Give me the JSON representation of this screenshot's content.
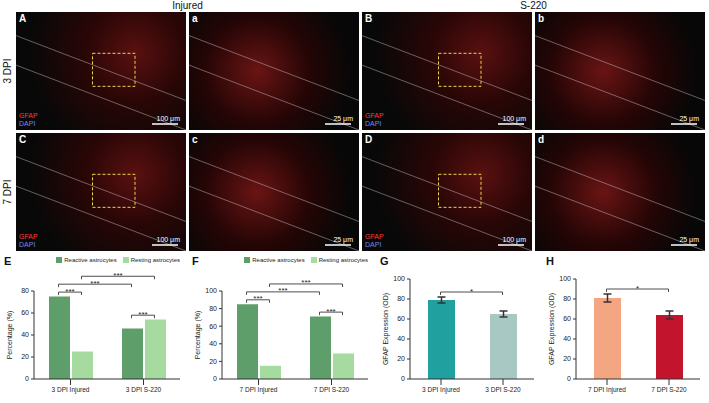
{
  "figure": {
    "columns": [
      "Injured",
      "S-220"
    ],
    "rows": [
      {
        "label": "3 DPI",
        "panels": [
          {
            "letter": "A",
            "stains": [
              "GFAP",
              "DAPI"
            ],
            "scale_bar": "100 μm"
          },
          {
            "letter": "a",
            "scale_bar": "25 μm"
          },
          {
            "letter": "B",
            "stains": [
              "GFAP",
              "DAPI"
            ],
            "scale_bar": "100 μm"
          },
          {
            "letter": "b",
            "scale_bar": "25 μm"
          }
        ]
      },
      {
        "label": "7 DPI",
        "panels": [
          {
            "letter": "C",
            "stains": [
              "GFAP",
              "DAPI"
            ],
            "scale_bar": "100 μm"
          },
          {
            "letter": "c",
            "scale_bar": "25 μm"
          },
          {
            "letter": "D",
            "stains": [
              "GFAP",
              "DAPI"
            ],
            "scale_bar": "100 μm"
          },
          {
            "letter": "d",
            "scale_bar": "25 μm"
          }
        ]
      }
    ]
  },
  "chart_data": [
    {
      "type": "bar",
      "label": "E",
      "categories": [
        "3 DPI Injured",
        "3 DPI S-220"
      ],
      "series": [
        {
          "name": "Reactive astrocytes",
          "color": "#5e9e6a",
          "values": [
            75,
            46
          ]
        },
        {
          "name": "Resting astrocytes",
          "color": "#a6dba0",
          "values": [
            25,
            54
          ]
        }
      ],
      "ylabel": "Percentage (%)",
      "ylim": [
        0,
        80
      ],
      "yticks": [
        0,
        20,
        40,
        60,
        80
      ],
      "grid": false,
      "legend": "top",
      "annotations": [
        {
          "text": "***",
          "from": [
            0,
            0
          ],
          "to": [
            0,
            1
          ]
        },
        {
          "text": "***",
          "from": [
            1,
            0
          ],
          "to": [
            1,
            1
          ]
        },
        {
          "text": "***",
          "from": [
            0,
            0
          ],
          "to": [
            1,
            0
          ]
        },
        {
          "text": "***",
          "from": [
            0,
            1
          ],
          "to": [
            1,
            1
          ]
        }
      ]
    },
    {
      "type": "bar",
      "label": "F",
      "categories": [
        "7 DPI Injured",
        "7 DPI S-220"
      ],
      "series": [
        {
          "name": "Reactive astrocytes",
          "color": "#5e9e6a",
          "values": [
            85,
            71
          ]
        },
        {
          "name": "Resting astrocytes",
          "color": "#a6dba0",
          "values": [
            15,
            29
          ]
        }
      ],
      "ylabel": "Percentage (%)",
      "ylim": [
        0,
        100
      ],
      "yticks": [
        0,
        20,
        40,
        60,
        80,
        100
      ],
      "grid": false,
      "legend": "top",
      "annotations": [
        {
          "text": "***",
          "from": [
            0,
            0
          ],
          "to": [
            0,
            1
          ]
        },
        {
          "text": "***",
          "from": [
            1,
            0
          ],
          "to": [
            1,
            1
          ]
        },
        {
          "text": "***",
          "from": [
            0,
            0
          ],
          "to": [
            1,
            0
          ]
        },
        {
          "text": "***",
          "from": [
            0,
            1
          ],
          "to": [
            1,
            1
          ]
        }
      ]
    },
    {
      "type": "bar",
      "label": "G",
      "categories": [
        "3 DPI Injured",
        "3 DPI S-220"
      ],
      "values": [
        79,
        65
      ],
      "errors": [
        3,
        3
      ],
      "colors": [
        "#21a0a0",
        "#a8c9c3"
      ],
      "ylabel": "GFAP Expression (OD)",
      "ylim": [
        0,
        100
      ],
      "yticks": [
        0,
        20,
        40,
        60,
        80,
        100
      ],
      "grid": false,
      "annotations": [
        {
          "text": "*",
          "from": [
            0,
            0
          ],
          "to": [
            1,
            0
          ]
        }
      ]
    },
    {
      "type": "bar",
      "label": "H",
      "categories": [
        "7 DPI Injured",
        "7 DPI S-220"
      ],
      "values": [
        81,
        64
      ],
      "errors": [
        4,
        4
      ],
      "colors": [
        "#f4a582",
        "#c3142d"
      ],
      "ylabel": "GFAP Expression (OD)",
      "ylim": [
        0,
        100
      ],
      "yticks": [
        0,
        20,
        40,
        60,
        80,
        100
      ],
      "grid": false,
      "annotations": [
        {
          "text": "*",
          "from": [
            0,
            0
          ],
          "to": [
            1,
            0
          ]
        }
      ]
    }
  ]
}
